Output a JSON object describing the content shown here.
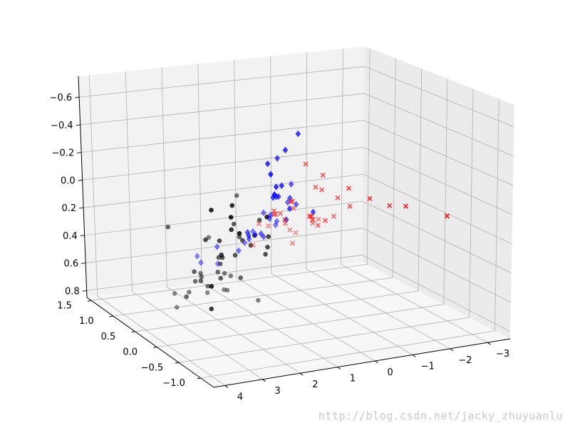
{
  "watermark": "http://blog.csdn.net/jacky_zhuyuanlu",
  "colors": {
    "pane_back": "#f2f2f2",
    "pane_side": "#ebebeb",
    "pane_floor": "#f7f7f7",
    "grid": "#b0b0b0",
    "axis_line": "#000000",
    "series_black": "#000000",
    "series_blue": "#0000ff",
    "series_red": "#ff0000"
  },
  "chart_data": {
    "type": "scatter",
    "projection": "3d",
    "grid": true,
    "xlim": [
      4.3,
      -3.6
    ],
    "ylim": [
      -1.3,
      1.6
    ],
    "zlim": [
      0.85,
      -0.75
    ],
    "x_ticks": [
      "4",
      "3",
      "2",
      "1",
      "0",
      "−1",
      "−2",
      "−3"
    ],
    "y_ticks": [
      "−1.0",
      "−0.5",
      "0.0",
      "0.5",
      "1.0",
      "1.5"
    ],
    "z_ticks": [
      "−0.6",
      "−0.4",
      "−0.2",
      "0.0",
      "0.2",
      "0.4",
      "0.6",
      "0.8"
    ],
    "series": [
      {
        "marker": "circle",
        "color": "#000000",
        "points": [
          [
            4.0,
            -1.0,
            0.2
          ],
          [
            4.0,
            -1.0,
            -0.35
          ],
          [
            3.6,
            -1.1,
            -0.3
          ],
          [
            3.5,
            -1.2,
            -0.2
          ],
          [
            3.2,
            -0.8,
            -0.3
          ],
          [
            3.1,
            -0.7,
            -0.1
          ],
          [
            3.7,
            0.2,
            0.05
          ],
          [
            3.3,
            -0.3,
            0.05
          ],
          [
            3.0,
            -0.4,
            0.15
          ],
          [
            2.6,
            -0.1,
            0.25
          ],
          [
            2.2,
            0.3,
            0.35
          ],
          [
            2.0,
            0.1,
            0.3
          ],
          [
            1.9,
            0.2,
            0.1
          ],
          [
            1.5,
            0.4,
            0.25
          ],
          [
            1.3,
            0.6,
            0.0
          ],
          [
            2.4,
            -0.9,
            -0.2
          ],
          [
            2.1,
            -0.4,
            0.05
          ],
          [
            1.8,
            0.1,
            0.2
          ],
          [
            3.0,
            0.2,
            0.4
          ],
          [
            2.7,
            0.3,
            0.5
          ],
          [
            2.3,
            0.6,
            0.55
          ],
          [
            2.4,
            0.1,
            0.45
          ],
          [
            2.1,
            0.4,
            0.48
          ],
          [
            1.9,
            0.5,
            0.45
          ],
          [
            1.6,
            0.3,
            0.52
          ],
          [
            2.0,
            0.7,
            0.65
          ],
          [
            1.4,
            0.8,
            0.6
          ],
          [
            1.1,
            0.9,
            0.65
          ],
          [
            2.5,
            1.0,
            0.85
          ],
          [
            2.3,
            1.2,
            0.8
          ],
          [
            1.5,
            1.1,
            0.8
          ],
          [
            0.9,
            1.2,
            0.82
          ],
          [
            1.2,
            0.9,
            0.75
          ],
          [
            0.2,
            1.0,
            0.88
          ],
          [
            1.5,
            -0.2,
            0.2
          ],
          [
            1.3,
            0.0,
            0.3
          ],
          [
            1.6,
            -0.3,
            0.1
          ],
          [
            2.8,
            -0.2,
            0.1
          ],
          [
            3.1,
            0.3,
            0.6
          ],
          [
            2.4,
            0.8,
            0.7
          ],
          [
            1.7,
            0.9,
            0.35
          ],
          [
            1.2,
            0.2,
            0.1
          ],
          [
            2.2,
            0.7,
            0.55
          ],
          [
            1.7,
            0.0,
            0.22
          ],
          [
            2.6,
            0.5,
            0.55
          ],
          [
            3.4,
            -0.5,
            0.5
          ]
        ]
      },
      {
        "marker": "diamond",
        "color": "#0000ff",
        "points": [
          [
            2.3,
            -0.9,
            -0.5
          ],
          [
            2.0,
            -0.6,
            -0.5
          ],
          [
            1.4,
            -0.5,
            -0.55
          ],
          [
            0.8,
            -0.3,
            -0.6
          ],
          [
            2.2,
            -0.9,
            -0.35
          ],
          [
            1.9,
            -0.7,
            -0.35
          ],
          [
            1.5,
            -0.5,
            -0.3
          ],
          [
            1.1,
            -0.1,
            -0.4
          ],
          [
            1.6,
            -0.4,
            -0.2
          ],
          [
            1.2,
            -0.2,
            -0.15
          ],
          [
            0.9,
            -0.2,
            -0.05
          ],
          [
            0.5,
            0.1,
            -0.05
          ],
          [
            0.2,
            0.3,
            -0.1
          ],
          [
            -0.1,
            0.6,
            0.1
          ],
          [
            0.6,
            0.1,
            0.1
          ],
          [
            1.0,
            0.0,
            -0.1
          ],
          [
            0.5,
            0.5,
            0.15
          ],
          [
            0.3,
            0.8,
            0.2
          ],
          [
            -0.2,
            0.9,
            0.3
          ],
          [
            -0.3,
            1.0,
            0.35
          ],
          [
            1.1,
            0.5,
            0.3
          ],
          [
            0.7,
            0.5,
            0.3
          ],
          [
            0.9,
            0.4,
            0.25
          ],
          [
            1.4,
            0.3,
            0.2
          ],
          [
            1.6,
            0.8,
            0.4
          ],
          [
            1.9,
            1.0,
            0.5
          ],
          [
            1.8,
            1.0,
            0.55
          ],
          [
            1.2,
            1.1,
            0.6
          ],
          [
            0.3,
            1.2,
            0.5
          ],
          [
            1.0,
            0.8,
            0.45
          ],
          [
            0.4,
            0.6,
            0.2
          ],
          [
            -0.2,
            0.5,
            0.1
          ],
          [
            0.0,
            0.0,
            0.05
          ],
          [
            1.5,
            0.2,
            0.2
          ],
          [
            0.8,
            0.6,
            0.3
          ],
          [
            0.2,
            1.1,
            0.4
          ]
        ]
      },
      {
        "marker": "x",
        "color": "#ff0000",
        "points": [
          [
            0.2,
            0.0,
            -0.3
          ],
          [
            0.0,
            -0.2,
            -0.25
          ],
          [
            -0.3,
            -0.5,
            -0.2
          ],
          [
            -0.6,
            -0.7,
            -0.15
          ],
          [
            -1.0,
            -0.8,
            -0.1
          ],
          [
            -1.3,
            -0.9,
            -0.1
          ],
          [
            -2.0,
            -1.2,
            -0.05
          ],
          [
            -0.2,
            0.1,
            -0.1
          ],
          [
            -0.5,
            0.2,
            -0.05
          ],
          [
            -0.8,
            0.1,
            0.0
          ],
          [
            -1.0,
            0.0,
            0.05
          ],
          [
            0.3,
            0.2,
            0.0
          ],
          [
            0.5,
            0.3,
            0.1
          ],
          [
            0.8,
            0.2,
            0.05
          ],
          [
            0.0,
            0.4,
            0.1
          ],
          [
            -0.3,
            0.3,
            0.15
          ],
          [
            -0.6,
            0.5,
            0.2
          ],
          [
            -0.9,
            0.7,
            0.25
          ],
          [
            -1.2,
            0.9,
            0.35
          ],
          [
            -1.5,
            1.0,
            0.35
          ],
          [
            -1.6,
            1.2,
            0.4
          ],
          [
            -1.0,
            1.1,
            0.45
          ],
          [
            -0.7,
            1.0,
            0.4
          ],
          [
            -0.3,
            0.8,
            0.3
          ],
          [
            0.1,
            0.7,
            0.2
          ],
          [
            0.4,
            0.5,
            0.15
          ],
          [
            -0.1,
            1.0,
            0.35
          ],
          [
            0.3,
            0.9,
            0.3
          ],
          [
            -0.4,
            0.2,
            0.2
          ],
          [
            -0.8,
            0.6,
            0.25
          ],
          [
            -1.1,
            0.4,
            0.2
          ],
          [
            0.6,
            0.0,
            -0.05
          ],
          [
            0.9,
            -0.1,
            0.05
          ],
          [
            -0.2,
            -0.1,
            0.1
          ],
          [
            -0.5,
            0.8,
            0.45
          ],
          [
            0.2,
            1.1,
            0.5
          ]
        ]
      }
    ]
  }
}
